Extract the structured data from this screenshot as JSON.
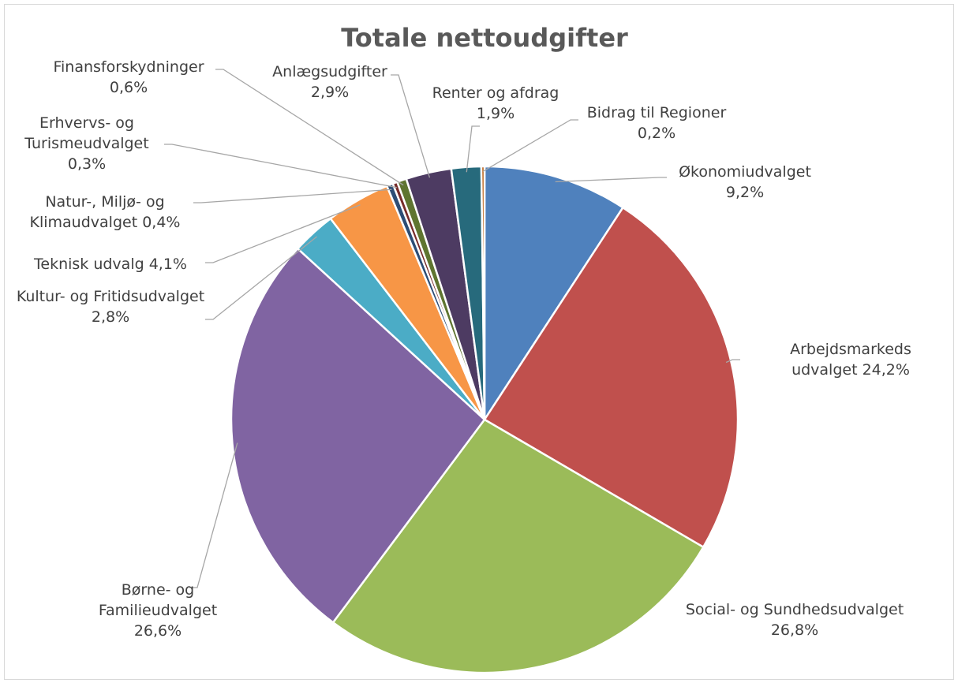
{
  "chart_data": {
    "type": "pie",
    "title": "Totale nettoudgifter",
    "categories": [
      "Økonomiudvalget",
      "Arbejdsmarkeds udvalget",
      "Social- og Sundhedsudvalget",
      "Børne- og Familieudvalget",
      "Kultur- og Fritidsudvalget",
      "Teknisk udvalg",
      "Natur-, Miljø- og Klimaudvalget",
      "Erhvervs- og Turismeudvalget",
      "Finansforskydninger",
      "Anlægsudgifter",
      "Renter og afdrag",
      "Bidrag til Regioner"
    ],
    "values": [
      9.2,
      24.2,
      26.8,
      26.6,
      2.8,
      4.1,
      0.4,
      0.3,
      0.6,
      2.9,
      1.9,
      0.2
    ],
    "value_labels": [
      "9,2%",
      "24,2%",
      "26,8%",
      "26,6%",
      "2,8%",
      "4,1%",
      "0,4%",
      "0,3%",
      "0,6%",
      "2,9%",
      "1,9%",
      "0,2%"
    ],
    "colors": [
      "#4f81bd",
      "#c0504d",
      "#9bbb59",
      "#8064a2",
      "#4bacc6",
      "#f79646",
      "#2c4d75",
      "#772c2a",
      "#5f7530",
      "#4d3b62",
      "#276a7c",
      "#b65708"
    ]
  }
}
